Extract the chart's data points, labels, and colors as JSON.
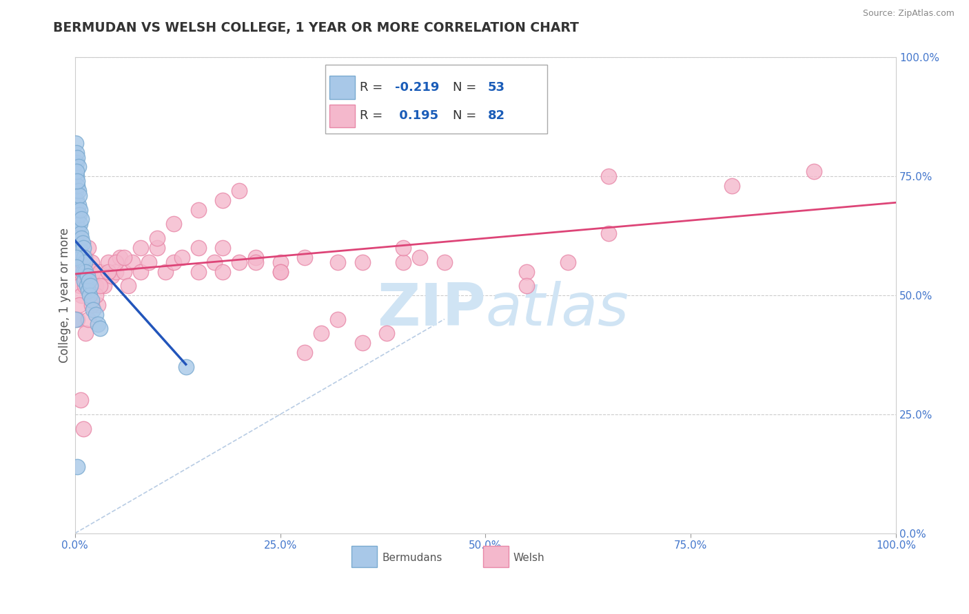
{
  "title": "BERMUDAN VS WELSH COLLEGE, 1 YEAR OR MORE CORRELATION CHART",
  "source_text": "Source: ZipAtlas.com",
  "ylabel": "College, 1 year or more",
  "xlim": [
    0,
    1.0
  ],
  "ylim": [
    0,
    1.0
  ],
  "xticks": [
    0.0,
    0.25,
    0.5,
    0.75,
    1.0
  ],
  "xtick_labels": [
    "0.0%",
    "25.0%",
    "50.0%",
    "75.0%",
    "100.0%"
  ],
  "yticks": [
    0.0,
    0.25,
    0.5,
    0.75,
    1.0
  ],
  "ytick_labels": [
    "0.0%",
    "25.0%",
    "50.0%",
    "75.0%",
    "100.0%"
  ],
  "bermudan_color": "#a8c8e8",
  "welsh_color": "#f4b8cc",
  "bermudan_edge": "#7aaad0",
  "welsh_edge": "#e888a8",
  "trend_blue": "#2255bb",
  "trend_pink": "#dd4477",
  "diag_color": "#b8cce4",
  "watermark_color": "#d0e4f4",
  "background_color": "#ffffff",
  "r_value_color": "#1a5cb8",
  "n_label_color": "#333333",
  "title_color": "#333333",
  "tick_color": "#4477cc",
  "bermudan_x": [
    0.001,
    0.001,
    0.001,
    0.002,
    0.002,
    0.002,
    0.002,
    0.003,
    0.003,
    0.003,
    0.003,
    0.004,
    0.004,
    0.004,
    0.005,
    0.005,
    0.005,
    0.006,
    0.006,
    0.007,
    0.007,
    0.008,
    0.008,
    0.009,
    0.009,
    0.01,
    0.01,
    0.011,
    0.011,
    0.012,
    0.013,
    0.014,
    0.015,
    0.016,
    0.017,
    0.018,
    0.019,
    0.02,
    0.022,
    0.025,
    0.028,
    0.03,
    0.001,
    0.002,
    0.003,
    0.004,
    0.002,
    0.003,
    0.001,
    0.002,
    0.001,
    0.003,
    0.135
  ],
  "bermudan_y": [
    0.62,
    0.68,
    0.72,
    0.75,
    0.78,
    0.65,
    0.7,
    0.73,
    0.68,
    0.63,
    0.66,
    0.69,
    0.64,
    0.72,
    0.67,
    0.71,
    0.6,
    0.65,
    0.68,
    0.63,
    0.58,
    0.62,
    0.66,
    0.61,
    0.57,
    0.6,
    0.55,
    0.58,
    0.53,
    0.57,
    0.55,
    0.52,
    0.54,
    0.51,
    0.53,
    0.5,
    0.52,
    0.49,
    0.47,
    0.46,
    0.44,
    0.43,
    0.82,
    0.8,
    0.79,
    0.77,
    0.76,
    0.74,
    0.58,
    0.56,
    0.45,
    0.14,
    0.35
  ],
  "welsh_x": [
    0.001,
    0.002,
    0.003,
    0.004,
    0.005,
    0.006,
    0.007,
    0.008,
    0.009,
    0.01,
    0.012,
    0.013,
    0.015,
    0.016,
    0.018,
    0.02,
    0.022,
    0.025,
    0.028,
    0.03,
    0.035,
    0.04,
    0.045,
    0.05,
    0.055,
    0.06,
    0.065,
    0.07,
    0.08,
    0.09,
    0.1,
    0.11,
    0.12,
    0.13,
    0.15,
    0.17,
    0.18,
    0.2,
    0.22,
    0.25,
    0.28,
    0.3,
    0.32,
    0.35,
    0.38,
    0.4,
    0.42,
    0.45,
    0.15,
    0.18,
    0.22,
    0.25,
    0.28,
    0.32,
    0.003,
    0.005,
    0.007,
    0.01,
    0.013,
    0.016,
    0.02,
    0.025,
    0.03,
    0.04,
    0.05,
    0.06,
    0.08,
    0.1,
    0.12,
    0.15,
    0.18,
    0.2,
    0.25,
    0.35,
    0.4,
    0.55,
    0.6,
    0.65,
    0.8,
    0.9,
    0.55,
    0.65
  ],
  "welsh_y": [
    0.6,
    0.63,
    0.55,
    0.58,
    0.56,
    0.52,
    0.55,
    0.5,
    0.57,
    0.54,
    0.52,
    0.58,
    0.55,
    0.6,
    0.53,
    0.57,
    0.55,
    0.52,
    0.48,
    0.55,
    0.52,
    0.57,
    0.54,
    0.55,
    0.58,
    0.55,
    0.52,
    0.57,
    0.55,
    0.57,
    0.6,
    0.55,
    0.57,
    0.58,
    0.55,
    0.57,
    0.6,
    0.57,
    0.58,
    0.57,
    0.38,
    0.42,
    0.45,
    0.4,
    0.42,
    0.57,
    0.58,
    0.57,
    0.6,
    0.55,
    0.57,
    0.55,
    0.58,
    0.57,
    0.45,
    0.48,
    0.28,
    0.22,
    0.42,
    0.45,
    0.48,
    0.5,
    0.52,
    0.55,
    0.57,
    0.58,
    0.6,
    0.62,
    0.65,
    0.68,
    0.7,
    0.72,
    0.55,
    0.57,
    0.6,
    0.55,
    0.57,
    0.63,
    0.73,
    0.76,
    0.52,
    0.75
  ],
  "blue_trend_x0": 0.0,
  "blue_trend_y0": 0.615,
  "blue_trend_x1": 0.135,
  "blue_trend_y1": 0.355,
  "pink_trend_x0": 0.0,
  "pink_trend_y0": 0.545,
  "pink_trend_x1": 1.0,
  "pink_trend_y1": 0.695
}
